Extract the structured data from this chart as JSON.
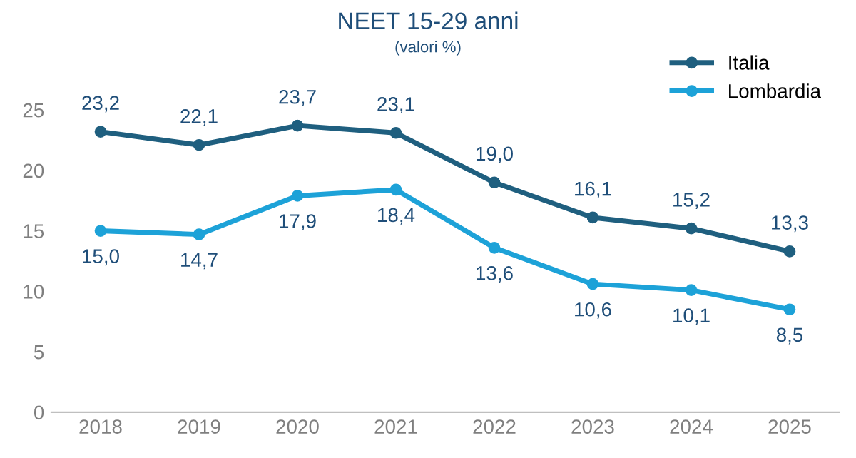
{
  "chart_data": {
    "type": "line",
    "title": "NEET 15-29 anni",
    "subtitle": "(valori %)",
    "categories": [
      "2018",
      "2019",
      "2020",
      "2021",
      "2022",
      "2023",
      "2024",
      "2025"
    ],
    "series": [
      {
        "name": "Italia",
        "color": "#1f5f7f",
        "values": [
          23.2,
          22.1,
          23.7,
          23.1,
          19.0,
          16.1,
          15.2,
          13.3
        ],
        "value_labels": [
          "23,2",
          "22,1",
          "23,7",
          "23,1",
          "19,0",
          "16,1",
          "15,2",
          "13,3"
        ]
      },
      {
        "name": "Lombardia",
        "color": "#1da2d8",
        "values": [
          15.0,
          14.7,
          17.9,
          18.4,
          13.6,
          10.6,
          10.1,
          8.5
        ],
        "value_labels": [
          "15,0",
          "14,7",
          "17,9",
          "18,4",
          "13,6",
          "10,6",
          "10,1",
          "8,5"
        ]
      }
    ],
    "ylim": [
      0,
      25
    ],
    "yticks": [
      0,
      5,
      10,
      15,
      20,
      25
    ],
    "grid": false,
    "legend": "top right",
    "marker": "circle",
    "line_style": "solid"
  }
}
